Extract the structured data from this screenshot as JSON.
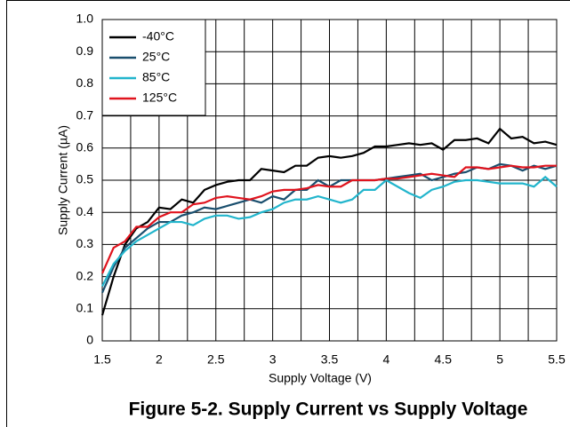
{
  "chart_data": {
    "type": "line",
    "title": "Figure 5-2. Supply Current vs Supply Voltage",
    "xlabel": "Supply Voltage (V)",
    "ylabel": "Supply Current (µA)",
    "x": [
      1.5,
      1.6,
      1.7,
      1.8,
      1.9,
      2.0,
      2.1,
      2.2,
      2.3,
      2.4,
      2.5,
      2.6,
      2.7,
      2.8,
      2.9,
      3.0,
      3.1,
      3.2,
      3.3,
      3.4,
      3.5,
      3.6,
      3.7,
      3.8,
      3.9,
      4.0,
      4.1,
      4.2,
      4.3,
      4.4,
      4.5,
      4.6,
      4.7,
      4.8,
      4.9,
      5.0,
      5.1,
      5.2,
      5.3,
      5.4,
      5.5
    ],
    "series": [
      {
        "name": "-40°C",
        "color": "#000000",
        "values": [
          0.08,
          0.2,
          0.3,
          0.35,
          0.37,
          0.415,
          0.41,
          0.44,
          0.43,
          0.47,
          0.485,
          0.495,
          0.5,
          0.5,
          0.535,
          0.53,
          0.525,
          0.545,
          0.545,
          0.57,
          0.575,
          0.57,
          0.575,
          0.585,
          0.605,
          0.605,
          0.61,
          0.615,
          0.61,
          0.615,
          0.595,
          0.625,
          0.625,
          0.63,
          0.615,
          0.66,
          0.63,
          0.635,
          0.615,
          0.62,
          0.61
        ]
      },
      {
        "name": "25°C",
        "color": "#1a4f6e",
        "values": [
          0.15,
          0.23,
          0.29,
          0.32,
          0.35,
          0.37,
          0.37,
          0.39,
          0.4,
          0.415,
          0.41,
          0.42,
          0.43,
          0.44,
          0.43,
          0.45,
          0.44,
          0.47,
          0.47,
          0.5,
          0.48,
          0.5,
          0.5,
          0.5,
          0.5,
          0.505,
          0.51,
          0.515,
          0.52,
          0.5,
          0.51,
          0.52,
          0.525,
          0.54,
          0.535,
          0.55,
          0.545,
          0.53,
          0.545,
          0.535,
          0.545
        ]
      },
      {
        "name": "85°C",
        "color": "#22b5cc",
        "values": [
          0.17,
          0.24,
          0.28,
          0.31,
          0.33,
          0.35,
          0.37,
          0.37,
          0.36,
          0.38,
          0.39,
          0.39,
          0.38,
          0.385,
          0.4,
          0.41,
          0.43,
          0.44,
          0.44,
          0.45,
          0.44,
          0.43,
          0.44,
          0.47,
          0.47,
          0.5,
          0.48,
          0.46,
          0.445,
          0.47,
          0.48,
          0.495,
          0.5,
          0.5,
          0.495,
          0.49,
          0.49,
          0.49,
          0.48,
          0.51,
          0.48
        ]
      },
      {
        "name": "125°C",
        "color": "#e0141e",
        "values": [
          0.21,
          0.29,
          0.31,
          0.355,
          0.355,
          0.385,
          0.4,
          0.4,
          0.425,
          0.43,
          0.445,
          0.45,
          0.445,
          0.44,
          0.45,
          0.465,
          0.47,
          0.47,
          0.475,
          0.485,
          0.48,
          0.48,
          0.5,
          0.5,
          0.5,
          0.505,
          0.505,
          0.51,
          0.515,
          0.52,
          0.515,
          0.51,
          0.54,
          0.54,
          0.535,
          0.54,
          0.545,
          0.54,
          0.54,
          0.545,
          0.545
        ]
      }
    ],
    "xlim": [
      1.5,
      5.5
    ],
    "xticks": [
      1.5,
      2,
      2.5,
      3,
      3.5,
      4,
      4.5,
      5,
      5.5
    ],
    "xgrid": [
      1.75,
      2.25,
      2.75,
      3.25,
      3.75,
      4.25,
      4.75,
      5.25
    ],
    "ylim": [
      0,
      1
    ],
    "yticks": [
      0,
      0.1,
      0.2,
      0.3,
      0.4,
      0.5,
      0.6,
      0.7,
      0.8,
      0.9,
      {
        "value": 1,
        "label": "1.0"
      }
    ],
    "grid": true,
    "legend": "top-left"
  }
}
